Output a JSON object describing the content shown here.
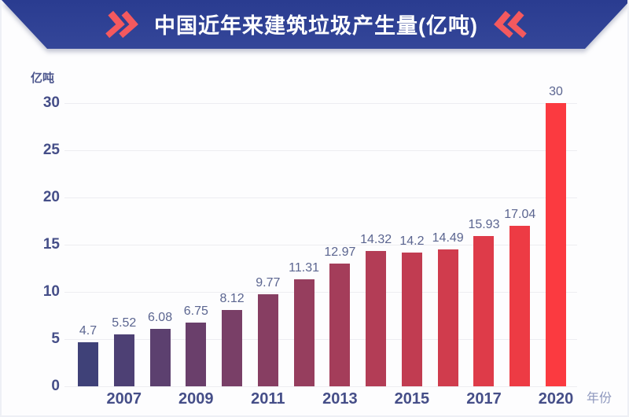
{
  "header": {
    "title": "中国近年来建筑垃圾产生量(亿吨)",
    "left_icon": "double-chevron-right",
    "right_icon": "double-chevron-left"
  },
  "chart_data": {
    "type": "bar",
    "title": "中国近年来建筑垃圾产生量(亿吨)",
    "y_axis_unit": "亿吨",
    "x_axis_label": "年份",
    "categories": [
      "",
      "2007",
      "",
      "2009",
      "",
      "2011",
      "",
      "2013",
      "",
      "2015",
      "",
      "2017",
      "",
      "2020"
    ],
    "values": [
      4.7,
      5.52,
      6.08,
      6.75,
      8.12,
      9.77,
      11.31,
      12.97,
      14.32,
      14.2,
      14.49,
      15.93,
      17.04,
      30
    ],
    "value_labels": [
      "4.7",
      "5.52",
      "6.08",
      "6.75",
      "8.12",
      "9.77",
      "11.31",
      "12.97",
      "14.32",
      "14.2",
      "14.49",
      "15.93",
      "17.04",
      "30"
    ],
    "y_ticks": [
      "0",
      "5",
      "10",
      "15",
      "20",
      "25",
      "30"
    ],
    "ylim": [
      0,
      30
    ],
    "grid": true,
    "legend": "none"
  },
  "colors": {
    "banner_blue_top": "#2a3c90",
    "banner_blue_bottom": "#344699",
    "banner_title_text": "#ffffff",
    "chevron_red": "#f4595e",
    "bar_gradient_start": "#3f4178",
    "bar_gradient_end": "#fb3a40",
    "axis_tick_color": "#454e88",
    "value_label_color": "#5b6590",
    "axis_name_color": "#8d97bd",
    "gridline_color": "#ededf1"
  }
}
